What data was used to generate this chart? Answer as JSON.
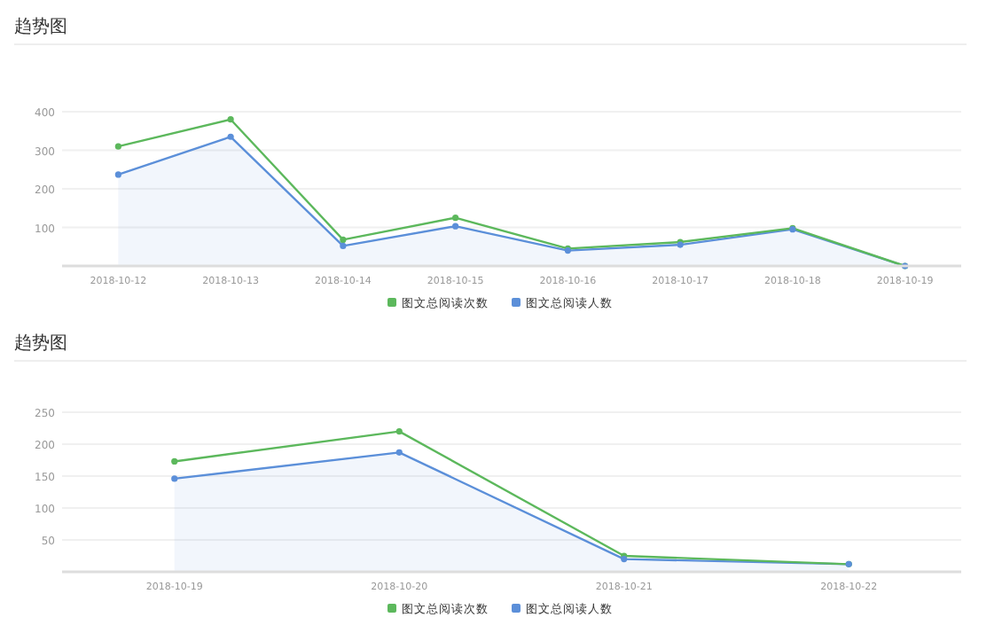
{
  "chart_data": [
    {
      "type": "line",
      "title": "趋势图",
      "categories": [
        "2018-10-12",
        "2018-10-13",
        "2018-10-14",
        "2018-10-15",
        "2018-10-16",
        "2018-10-17",
        "2018-10-18",
        "2018-10-19"
      ],
      "series": [
        {
          "name": "图文总阅读次数",
          "color": "#5cb85c",
          "values": [
            310,
            380,
            68,
            125,
            45,
            62,
            98,
            0
          ]
        },
        {
          "name": "图文总阅读人数",
          "color": "#5b8fd9",
          "type": "area",
          "values": [
            237,
            335,
            52,
            103,
            40,
            55,
            95,
            0
          ]
        }
      ],
      "ylim": [
        0,
        400
      ],
      "yticks": [
        100,
        200,
        300,
        400
      ],
      "grid": "y",
      "legend": "bottom",
      "marker": "circle"
    },
    {
      "type": "line",
      "title": "趋势图",
      "categories": [
        "2018-10-19",
        "2018-10-20",
        "2018-10-21",
        "2018-10-22"
      ],
      "series": [
        {
          "name": "图文总阅读次数",
          "color": "#5cb85c",
          "values": [
            173,
            220,
            25,
            12
          ]
        },
        {
          "name": "图文总阅读人数",
          "color": "#5b8fd9",
          "type": "area",
          "values": [
            146,
            187,
            20,
            12
          ]
        }
      ],
      "ylim": [
        0,
        250
      ],
      "yticks": [
        50,
        100,
        150,
        200,
        250
      ],
      "grid": "y",
      "legend": "bottom",
      "marker": "circle"
    }
  ]
}
